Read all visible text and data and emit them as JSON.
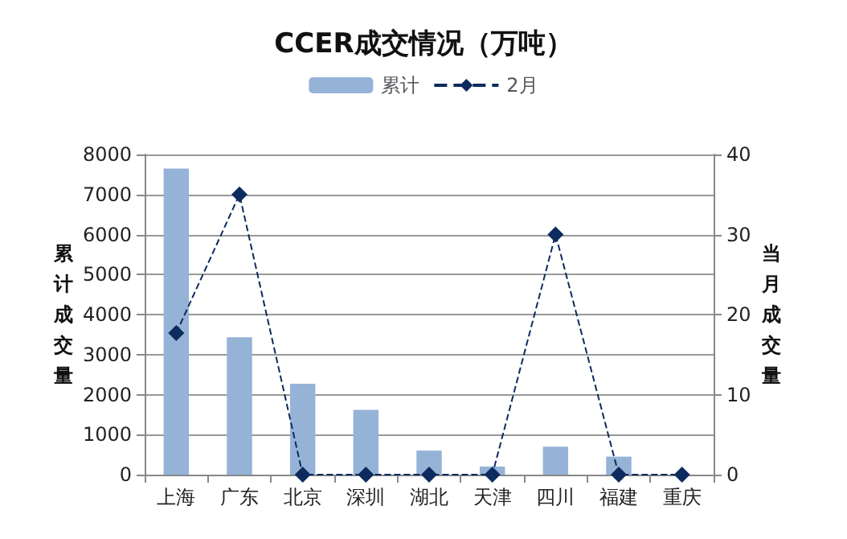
{
  "chart_data": {
    "type": "bar",
    "title": "CCER成交情况（万吨）",
    "categories": [
      "上海",
      "广东",
      "北京",
      "深圳",
      "湖北",
      "天津",
      "四川",
      "福建",
      "重庆"
    ],
    "series": [
      {
        "name": "累计",
        "color": "#95b3d7",
        "values": [
          7650,
          3430,
          2270,
          1620,
          600,
          200,
          700,
          450,
          0
        ]
      },
      {
        "name": "2月",
        "type": "line",
        "axis": "y2",
        "color": "#0d2b5e",
        "marker": "diamond",
        "line_style": "dashed",
        "values": [
          17.7,
          35,
          0,
          0,
          0,
          0,
          30,
          0,
          0
        ]
      }
    ],
    "ylabel": "累计成交量",
    "y2label": "当月成交量",
    "ylim": [
      0,
      8000
    ],
    "yticks": [
      0,
      1000,
      2000,
      3000,
      4000,
      5000,
      6000,
      7000,
      8000
    ],
    "y2lim": [
      0,
      40
    ],
    "y2ticks": [
      0,
      10,
      20,
      30,
      40
    ],
    "grid": "y",
    "legend": "top"
  }
}
